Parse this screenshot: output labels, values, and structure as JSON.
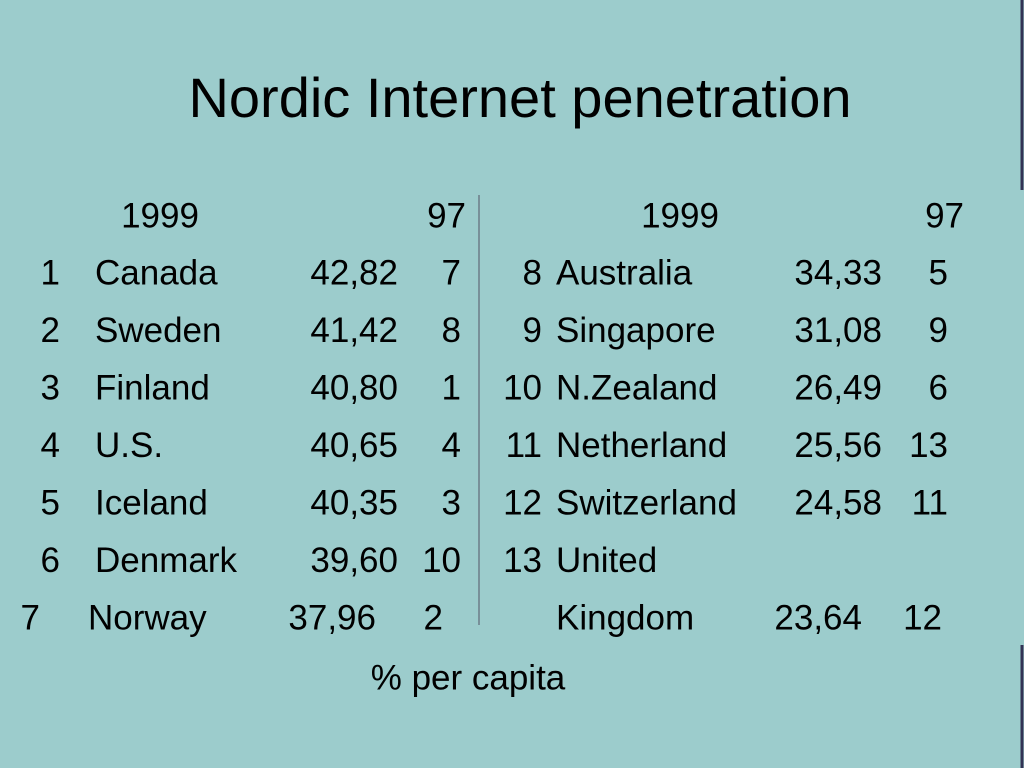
{
  "title": "Nordic Internet penetration",
  "left_table": {
    "header": [
      "1999",
      "97"
    ],
    "rows": [
      {
        "rank": 1,
        "name": "Canada",
        "value": "42,82",
        "rank_97": 7
      },
      {
        "rank": 2,
        "name": "Sweden",
        "value": "41,42",
        "rank_97": 8
      },
      {
        "rank": 3,
        "name": "Finland",
        "value": "40,80",
        "rank_97": 1
      },
      {
        "rank": 4,
        "name": "U.S.",
        "value": "40,65",
        "rank_97": 4
      },
      {
        "rank": 5,
        "name": "Iceland",
        "value": "40,35",
        "rank_97": 3
      },
      {
        "rank": 6,
        "name": "Denmark",
        "value": "39,60",
        "rank_97": 10
      },
      {
        "rank": 7,
        "name": "Norway",
        "value": "37,96",
        "rank_97": 2
      }
    ]
  },
  "right_table": {
    "header": [
      "1999",
      "97"
    ],
    "rows": [
      {
        "rank": 8,
        "name": "Australia",
        "value": "34,33",
        "rank_97": 5
      },
      {
        "rank": 9,
        "name": "Singapore",
        "value": "31,08",
        "rank_97": 9
      },
      {
        "rank": 10,
        "name": "N.Zealand",
        "value": "26,49",
        "rank_97": 6
      },
      {
        "rank": 11,
        "name": "Netherland",
        "value": "25,56",
        "rank_97": 13
      },
      {
        "rank": 12,
        "name": "Switzerland",
        "value": "24,58",
        "rank_97": 11
      },
      {
        "rank": 13,
        "name": [
          "United",
          "Kingdom"
        ],
        "value": "23,64",
        "rank_97": 12
      }
    ]
  },
  "footnote": "% per capita"
}
